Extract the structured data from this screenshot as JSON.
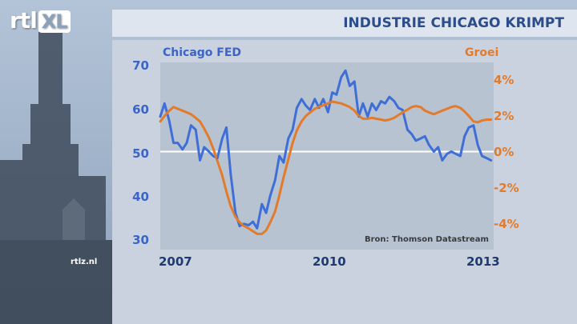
{
  "branding": {
    "logo_main": "rtl",
    "logo_suffix": "XL",
    "watermark": "rtlz.nl"
  },
  "header": {
    "title": "INDUSTRIE CHICAGO KRIMPT"
  },
  "colors": {
    "fed": "#3f6fd6",
    "groei": "#e37b2b",
    "plot_bg": "#b8c3d1",
    "zero_line": "#ffffff",
    "navy": "#2c4d8b"
  },
  "chart_data": {
    "type": "line",
    "title": "INDUSTRIE CHICAGO KRIMPT",
    "source": "Bron: Thomson Datastream",
    "x_range": [
      2007.0,
      2013.3
    ],
    "x_ticks": [
      "2007",
      "2010",
      "2013"
    ],
    "x_tick_values": [
      2007.0,
      2010.0,
      2013.0
    ],
    "y_left": {
      "label": "Chicago FED",
      "ticks": [
        "70",
        "60",
        "50",
        "40",
        "30"
      ],
      "range": [
        30,
        70
      ]
    },
    "y_right": {
      "label": "Groei",
      "ticks": [
        "4%",
        "2%",
        "0%",
        "-2%",
        "-4%"
      ],
      "range": [
        -4.5,
        4.5
      ],
      "unit": "%"
    },
    "series": [
      {
        "name": "Chicago FED",
        "axis": "left",
        "x": [
          2007.0,
          2007.08,
          2007.17,
          2007.25,
          2007.33,
          2007.42,
          2007.5,
          2007.58,
          2007.67,
          2007.75,
          2007.83,
          2007.92,
          2008.0,
          2008.08,
          2008.17,
          2008.25,
          2008.33,
          2008.42,
          2008.5,
          2008.58,
          2008.67,
          2008.75,
          2008.83,
          2008.92,
          2009.0,
          2009.08,
          2009.17,
          2009.25,
          2009.33,
          2009.42,
          2009.5,
          2009.58,
          2009.67,
          2009.75,
          2009.83,
          2009.92,
          2010.0,
          2010.08,
          2010.17,
          2010.25,
          2010.33,
          2010.42,
          2010.5,
          2010.58,
          2010.67,
          2010.75,
          2010.83,
          2010.92,
          2011.0,
          2011.08,
          2011.17,
          2011.25,
          2011.33,
          2011.42,
          2011.5,
          2011.58,
          2011.67,
          2011.75,
          2011.83,
          2011.92,
          2012.0,
          2012.08,
          2012.17,
          2012.25,
          2012.33,
          2012.42,
          2012.5,
          2012.58,
          2012.67,
          2012.75,
          2012.83,
          2012.92,
          2013.0,
          2013.08,
          2013.17,
          2013.25
        ],
        "values": [
          58,
          61,
          57,
          52,
          52,
          50.5,
          52,
          56,
          55,
          48,
          51,
          50,
          49,
          48.5,
          53,
          55.5,
          45,
          36,
          33,
          33.5,
          33.2,
          34,
          32.5,
          38,
          36,
          40,
          43.5,
          49,
          47.5,
          53,
          55,
          60,
          62,
          60.5,
          59.5,
          62,
          60,
          62,
          59,
          63.5,
          63,
          67,
          68.5,
          65,
          66,
          58,
          61,
          58,
          61,
          59.5,
          61.5,
          61,
          62.5,
          61.5,
          60,
          59.5,
          55,
          54,
          52.5,
          53,
          53.5,
          51.5,
          50,
          51,
          48,
          49.5,
          50,
          49.5,
          49,
          53.5,
          55.5,
          56,
          51.5,
          49,
          48.5,
          48
        ]
      },
      {
        "name": "Groei",
        "axis": "right",
        "x": [
          2007.0,
          2007.08,
          2007.17,
          2007.25,
          2007.33,
          2007.42,
          2007.5,
          2007.58,
          2007.67,
          2007.75,
          2007.83,
          2007.92,
          2008.0,
          2008.08,
          2008.17,
          2008.25,
          2008.33,
          2008.42,
          2008.5,
          2008.58,
          2008.67,
          2008.75,
          2008.83,
          2008.92,
          2009.0,
          2009.08,
          2009.17,
          2009.25,
          2009.33,
          2009.42,
          2009.5,
          2009.58,
          2009.67,
          2009.75,
          2009.83,
          2009.92,
          2010.0,
          2010.08,
          2010.17,
          2010.25,
          2010.33,
          2010.42,
          2010.5,
          2010.58,
          2010.67,
          2010.75,
          2010.83,
          2010.92,
          2011.0,
          2011.08,
          2011.17,
          2011.25,
          2011.33,
          2011.42,
          2011.5,
          2011.58,
          2011.67,
          2011.75,
          2011.83,
          2011.92,
          2012.0,
          2012.08,
          2012.17,
          2012.25,
          2012.33,
          2012.42,
          2012.5,
          2012.58,
          2012.67,
          2012.75,
          2012.83,
          2012.92,
          2013.0,
          2013.08,
          2013.17,
          2013.25
        ],
        "values": [
          1.7,
          2.0,
          2.3,
          2.5,
          2.4,
          2.3,
          2.2,
          2.1,
          1.9,
          1.7,
          1.3,
          0.8,
          0.2,
          -0.5,
          -1.3,
          -2.2,
          -3.0,
          -3.6,
          -3.9,
          -4.1,
          -4.25,
          -4.4,
          -4.55,
          -4.55,
          -4.35,
          -3.9,
          -3.3,
          -2.4,
          -1.4,
          -0.4,
          0.5,
          1.2,
          1.7,
          2.0,
          2.2,
          2.4,
          2.5,
          2.6,
          2.7,
          2.8,
          2.75,
          2.7,
          2.6,
          2.5,
          2.3,
          2.0,
          1.85,
          1.85,
          1.9,
          1.85,
          1.8,
          1.75,
          1.8,
          1.9,
          2.05,
          2.2,
          2.35,
          2.5,
          2.55,
          2.5,
          2.3,
          2.2,
          2.1,
          2.2,
          2.3,
          2.4,
          2.5,
          2.55,
          2.45,
          2.25,
          2.0,
          1.7,
          1.65,
          1.75,
          1.8,
          1.8
        ]
      }
    ]
  }
}
